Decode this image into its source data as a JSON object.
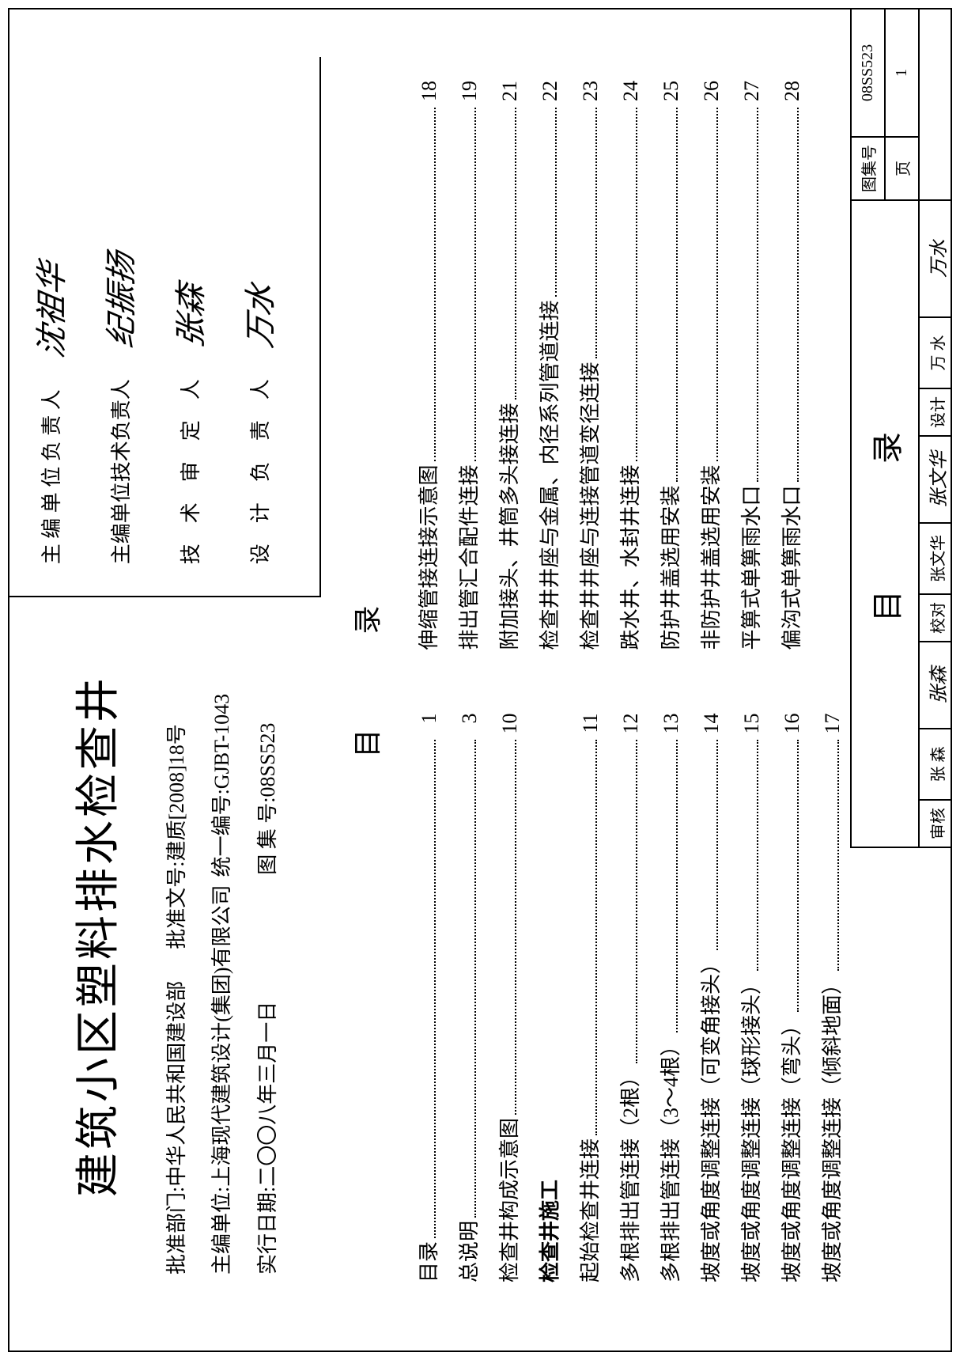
{
  "title": "建筑小区塑料排水检查井",
  "info": {
    "approve_dept_label": "批准部门:",
    "approve_dept": "中华人民共和国建设部",
    "approve_doc_label": "批准文号:",
    "approve_doc": "建质[2008]18号",
    "editor_unit_label": "主编单位:",
    "editor_unit": "上海现代建筑设计(集团)有限公司",
    "unify_no_label": "统一编号:",
    "unify_no": "GJBT-1043",
    "date_label": "实行日期:",
    "date": "二〇〇八年三月一日",
    "atlas_no_label": "图 集 号:",
    "atlas_no": "08SS523"
  },
  "sig": {
    "r1_label": "主 编 单 位 负 责 人",
    "r1_sig": "沈祖华",
    "r2_label": "主编单位技术负责人",
    "r2_sig": "纪振扬",
    "r3_label": "技　术　审　定　人",
    "r3_sig": "张森",
    "r4_label": "设　计　负　责　人",
    "r4_sig": "万水"
  },
  "toc_heading": "目录",
  "toc_left": [
    {
      "t": "目录",
      "p": "1",
      "b": false
    },
    {
      "t": "总说明",
      "p": "3",
      "b": false
    },
    {
      "t": "检查井构成示意图",
      "p": "10",
      "b": false
    },
    {
      "t": "检查井施工",
      "p": "",
      "b": true
    },
    {
      "t": "起始检查井连接",
      "p": "11",
      "b": false
    },
    {
      "t": "多根排出管连接（2根）",
      "p": "12",
      "b": false
    },
    {
      "t": "多根排出管连接（3～4根）",
      "p": "13",
      "b": false
    },
    {
      "t": "坡度或角度调整连接（可变角接头）",
      "p": "14",
      "b": false
    },
    {
      "t": "坡度或角度调整连接（球形接头）",
      "p": "15",
      "b": false
    },
    {
      "t": "坡度或角度调整连接（弯头）",
      "p": "16",
      "b": false
    },
    {
      "t": "坡度或角度调整连接（倾斜地面）",
      "p": "17",
      "b": false
    }
  ],
  "toc_right": [
    {
      "t": "伸缩管接连接示意图",
      "p": "18",
      "b": false
    },
    {
      "t": "排出管汇合配件连接",
      "p": "19",
      "b": false
    },
    {
      "t": "附加接头、井筒多头接连接",
      "p": "21",
      "b": false
    },
    {
      "t": "检查井井座与金属、内径系列管道连接",
      "p": "22",
      "b": false
    },
    {
      "t": "检查井井座与连接管道变径连接",
      "p": "23",
      "b": false
    },
    {
      "t": "跌水井、水封井连接",
      "p": "24",
      "b": false
    },
    {
      "t": "防护井盖选用安装",
      "p": "25",
      "b": false
    },
    {
      "t": "非防护井盖选用安装",
      "p": "26",
      "b": false
    },
    {
      "t": "平箅式单箅雨水口",
      "p": "27",
      "b": false
    },
    {
      "t": "偏沟式单箅雨水口",
      "p": "28",
      "b": false
    }
  ],
  "bb": {
    "title": "目录",
    "tuji_label": "图集号",
    "tuji": "08SS523",
    "page_label": "页",
    "page_no": "1",
    "c1_label": "审核",
    "c1_val": "张 森",
    "c1_sig": "张森",
    "c2_label": "校对",
    "c2_val": "张文华",
    "c2_sig": "张文华",
    "c3_label": "设计",
    "c3_val": "万 水",
    "c3_sig": "万水"
  }
}
